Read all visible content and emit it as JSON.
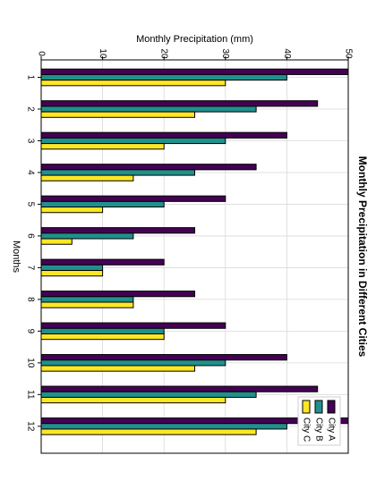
{
  "chart_data": {
    "type": "bar",
    "orientation": "horizontal",
    "rotated": "clockwise-90",
    "title": "Monthly Precipitation in Different Cities",
    "xlabel": "Monthly Precipitation (mm)",
    "ylabel": "Months",
    "xlim": [
      0,
      50
    ],
    "x_ticks": [
      0,
      10,
      20,
      30,
      40,
      50
    ],
    "categories": [
      "1",
      "2",
      "3",
      "4",
      "5",
      "6",
      "7",
      "8",
      "9",
      "10",
      "11",
      "12"
    ],
    "grid": true,
    "legend_position": "lower-right",
    "series": [
      {
        "name": "City A",
        "color": "#440154",
        "values": [
          50,
          45,
          40,
          35,
          30,
          25,
          20,
          25,
          30,
          40,
          45,
          50
        ]
      },
      {
        "name": "City B",
        "color": "#21908c",
        "values": [
          40,
          35,
          30,
          25,
          20,
          15,
          10,
          15,
          20,
          30,
          35,
          40
        ]
      },
      {
        "name": "City C",
        "color": "#fde725",
        "values": [
          30,
          25,
          20,
          15,
          10,
          5,
          10,
          15,
          20,
          25,
          30,
          35
        ]
      }
    ]
  }
}
